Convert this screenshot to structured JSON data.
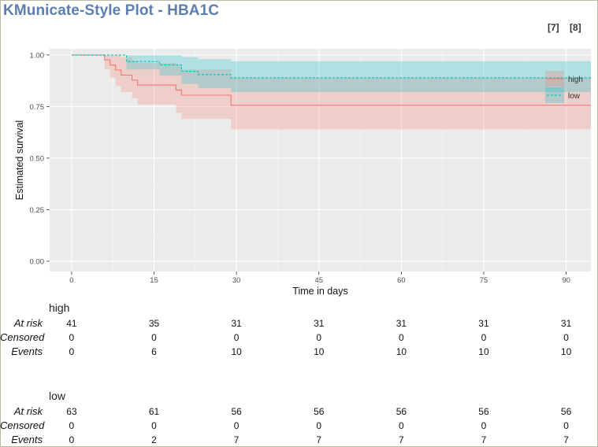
{
  "title": "KMunicate-Style Plot - HBA1C",
  "pager": [
    "[7]",
    "[8]"
  ],
  "chart_data": {
    "type": "line",
    "title": "KMunicate-Style Plot - HBA1C",
    "xlabel": "Time in days",
    "ylabel": "Estimated survival",
    "xlim": [
      -4,
      94.5
    ],
    "ylim": [
      -0.05,
      1.03
    ],
    "xticks": [
      0,
      15,
      30,
      45,
      60,
      75,
      90
    ],
    "yticks": [
      0.0,
      0.25,
      0.5,
      0.75,
      1.0
    ],
    "xtick_labels": [
      "0",
      "15",
      "30",
      "45",
      "60",
      "75",
      "90"
    ],
    "ytick_labels": [
      "0.00",
      "0.25",
      "0.50",
      "0.75",
      "1.00"
    ],
    "grid": true,
    "legend": "right",
    "series": [
      {
        "name": "high",
        "color": "#f8766d",
        "line_style": "solid",
        "steps": [
          [
            0,
            1.0
          ],
          [
            6,
            0.976
          ],
          [
            7,
            0.951
          ],
          [
            8,
            0.927
          ],
          [
            9,
            0.902
          ],
          [
            11,
            0.878
          ],
          [
            12,
            0.854
          ],
          [
            19,
            0.83
          ],
          [
            20,
            0.805
          ],
          [
            29,
            0.756
          ],
          [
            94.5,
            0.756
          ]
        ],
        "ci_lower": [
          [
            0,
            1.0
          ],
          [
            6,
            0.93
          ],
          [
            7,
            0.89
          ],
          [
            8,
            0.85
          ],
          [
            9,
            0.82
          ],
          [
            11,
            0.79
          ],
          [
            12,
            0.76
          ],
          [
            19,
            0.72
          ],
          [
            20,
            0.69
          ],
          [
            29,
            0.64
          ],
          [
            94.5,
            0.64
          ]
        ],
        "ci_upper": [
          [
            0,
            1.0
          ],
          [
            6,
            1.0
          ],
          [
            7,
            1.0
          ],
          [
            8,
            1.0
          ],
          [
            9,
            0.99
          ],
          [
            11,
            0.97
          ],
          [
            12,
            0.96
          ],
          [
            19,
            0.95
          ],
          [
            20,
            0.93
          ],
          [
            29,
            0.89
          ],
          [
            94.5,
            0.89
          ]
        ]
      },
      {
        "name": "low",
        "color": "#00bfc4",
        "line_style": "dashed",
        "steps": [
          [
            0,
            1.0
          ],
          [
            10,
            0.968
          ],
          [
            16,
            0.952
          ],
          [
            20,
            0.921
          ],
          [
            23,
            0.905
          ],
          [
            29,
            0.889
          ],
          [
            94.5,
            0.889
          ]
        ],
        "ci_lower": [
          [
            0,
            1.0
          ],
          [
            10,
            0.93
          ],
          [
            16,
            0.9
          ],
          [
            20,
            0.86
          ],
          [
            23,
            0.84
          ],
          [
            29,
            0.82
          ],
          [
            94.5,
            0.82
          ]
        ],
        "ci_upper": [
          [
            0,
            1.0
          ],
          [
            10,
            1.0
          ],
          [
            16,
            1.0
          ],
          [
            20,
            0.99
          ],
          [
            23,
            0.98
          ],
          [
            29,
            0.97
          ],
          [
            94.5,
            0.97
          ]
        ]
      }
    ]
  },
  "risk_table": {
    "time_points": [
      "0",
      "15",
      "30",
      "45",
      "60",
      "75",
      "90"
    ],
    "row_labels": [
      "At risk",
      "Censored",
      "Events"
    ],
    "groups": [
      {
        "name": "high",
        "at_risk": [
          "41",
          "35",
          "31",
          "31",
          "31",
          "31",
          "31"
        ],
        "censored": [
          "0",
          "0",
          "0",
          "0",
          "0",
          "0",
          "0"
        ],
        "events": [
          "0",
          "6",
          "10",
          "10",
          "10",
          "10",
          "10"
        ]
      },
      {
        "name": "low",
        "at_risk": [
          "63",
          "61",
          "56",
          "56",
          "56",
          "56",
          "56"
        ],
        "censored": [
          "0",
          "0",
          "0",
          "0",
          "0",
          "0",
          "0"
        ],
        "events": [
          "0",
          "2",
          "7",
          "7",
          "7",
          "7",
          "7"
        ]
      }
    ]
  }
}
